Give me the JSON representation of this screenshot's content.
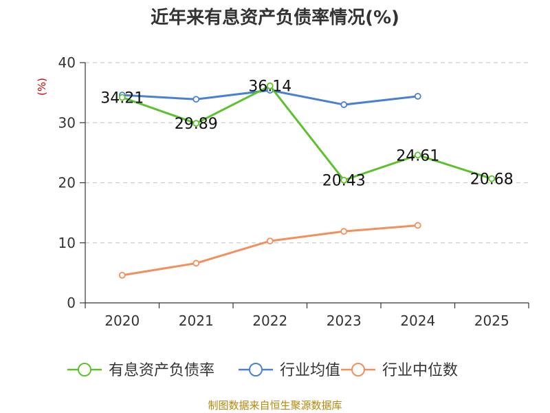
{
  "chart_data": {
    "type": "line",
    "title": "近年来有息资产负债率情况(%)",
    "unit_label": "(%)",
    "categories": [
      "2020",
      "2021",
      "2022",
      "2023",
      "2024",
      "2025"
    ],
    "ylim": [
      0,
      40
    ],
    "yticks": [
      0,
      10,
      20,
      30,
      40
    ],
    "grid": true,
    "legend_position": "bottom",
    "series": [
      {
        "name": "有息资产负债率",
        "color": "#5cc22c",
        "values": [
          34.21,
          29.89,
          36.14,
          20.43,
          24.61,
          20.68
        ],
        "labels": [
          "34.21",
          "29.89",
          "36.14",
          "20.43",
          "24.61",
          "20.68"
        ]
      },
      {
        "name": "行业均值",
        "color": "#4a7fd6",
        "values": [
          34.6,
          33.9,
          35.4,
          33.0,
          34.4,
          null
        ]
      },
      {
        "name": "行业中位数",
        "color": "#f28f5c",
        "values": [
          4.6,
          6.6,
          10.3,
          11.9,
          12.9,
          null
        ]
      }
    ],
    "source": "制图数据来自恒生聚源数据库"
  }
}
